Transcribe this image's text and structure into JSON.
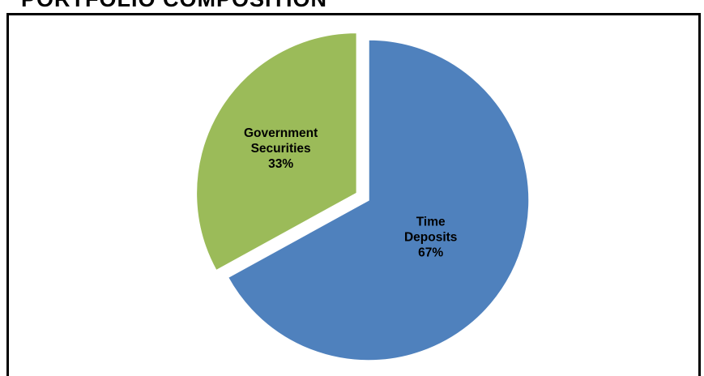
{
  "title": "PORTFOLIO COMPOSITION",
  "chart_data": {
    "type": "pie",
    "title": "PORTFOLIO COMPOSITION",
    "slices": [
      {
        "label_lines": [
          "Time",
          "Deposits",
          "67%"
        ],
        "value": 67,
        "color": "#4f81bd"
      },
      {
        "label_lines": [
          "Government",
          "Securities",
          "33%"
        ],
        "value": 33,
        "color": "#9bbb59"
      }
    ],
    "exploded": "Government Securities",
    "legend": "none"
  }
}
